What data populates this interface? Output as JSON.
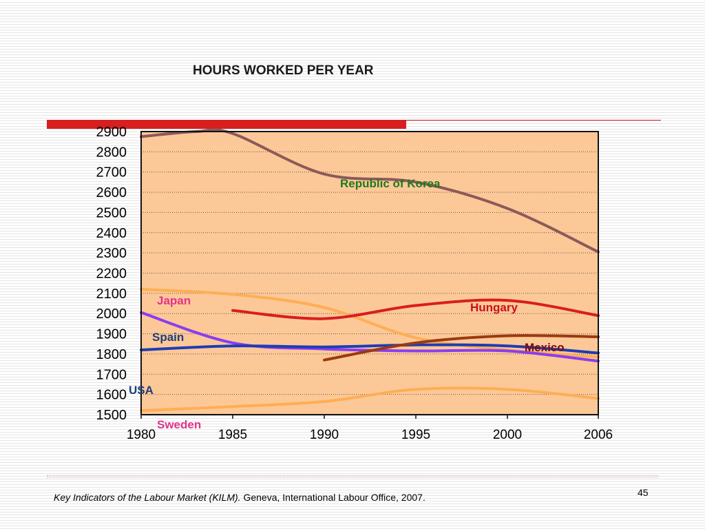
{
  "slide": {
    "title": "HOURS WORKED PER YEAR",
    "page_number": "45",
    "source_italic": "Key Indicators of the Labour Market (KILM).",
    "source_rest": " Geneva, International Labour Office, 2007.",
    "accent_color": "#d81e1e"
  },
  "chart_data": {
    "type": "line",
    "title": "HOURS WORKED PER YEAR",
    "xlabel": "",
    "ylabel": "",
    "x_ticks": [
      "1980",
      "1985",
      "1990",
      "1995",
      "2000",
      "2006"
    ],
    "y_ticks": [
      "2900",
      "2800",
      "2700",
      "2600",
      "2500",
      "2400",
      "2300",
      "2200",
      "2100",
      "2000",
      "1900",
      "1800",
      "1700",
      "1600",
      "1500"
    ],
    "ylim": [
      1500,
      2900
    ],
    "grid": "horizontal dotted",
    "plot_background": "#fdc897",
    "series": [
      {
        "name": "Republic of Korea",
        "color": "#8b5a5a",
        "label_color": "#1e7a1e",
        "points": [
          [
            1980,
            2875
          ],
          [
            1983,
            2900
          ],
          [
            1985,
            2890
          ],
          [
            1990,
            2690
          ],
          [
            1995,
            2650
          ],
          [
            2000,
            2520
          ],
          [
            2006,
            2305
          ]
        ]
      },
      {
        "name": "Japan",
        "color": "#fdae55",
        "label_color": "#e0338c",
        "points": [
          [
            1980,
            2120
          ],
          [
            1985,
            2095
          ],
          [
            1990,
            2030
          ],
          [
            1995,
            1880
          ],
          [
            2000,
            1820
          ],
          [
            2006,
            1785
          ]
        ]
      },
      {
        "name": "Hungary",
        "color": "#d81e1e",
        "label_color": "#c8101c",
        "points": [
          [
            1985,
            2015
          ],
          [
            1990,
            1975
          ],
          [
            1995,
            2040
          ],
          [
            2000,
            2065
          ],
          [
            2006,
            1990
          ]
        ]
      },
      {
        "name": "Spain",
        "color": "#8a3df0",
        "label_color": "#1e3d7a",
        "points": [
          [
            1980,
            2005
          ],
          [
            1985,
            1855
          ],
          [
            1990,
            1825
          ],
          [
            1995,
            1815
          ],
          [
            2000,
            1815
          ],
          [
            2006,
            1765
          ]
        ]
      },
      {
        "name": "USA",
        "color": "#1e3cb4",
        "label_color": "#1e3d7a",
        "points": [
          [
            1980,
            1820
          ],
          [
            1985,
            1840
          ],
          [
            1990,
            1835
          ],
          [
            1995,
            1845
          ],
          [
            2000,
            1840
          ],
          [
            2006,
            1805
          ]
        ]
      },
      {
        "name": "Mexico",
        "color": "#9b3a10",
        "label_color": "#7a0a0a",
        "points": [
          [
            1990,
            1770
          ],
          [
            1995,
            1855
          ],
          [
            2000,
            1890
          ],
          [
            2006,
            1885
          ]
        ]
      },
      {
        "name": "Sweden",
        "color": "#fdae55",
        "label_color": "#e0338c",
        "points": [
          [
            1980,
            1520
          ],
          [
            1985,
            1540
          ],
          [
            1990,
            1565
          ],
          [
            1995,
            1625
          ],
          [
            2000,
            1625
          ],
          [
            2006,
            1580
          ]
        ]
      }
    ]
  }
}
